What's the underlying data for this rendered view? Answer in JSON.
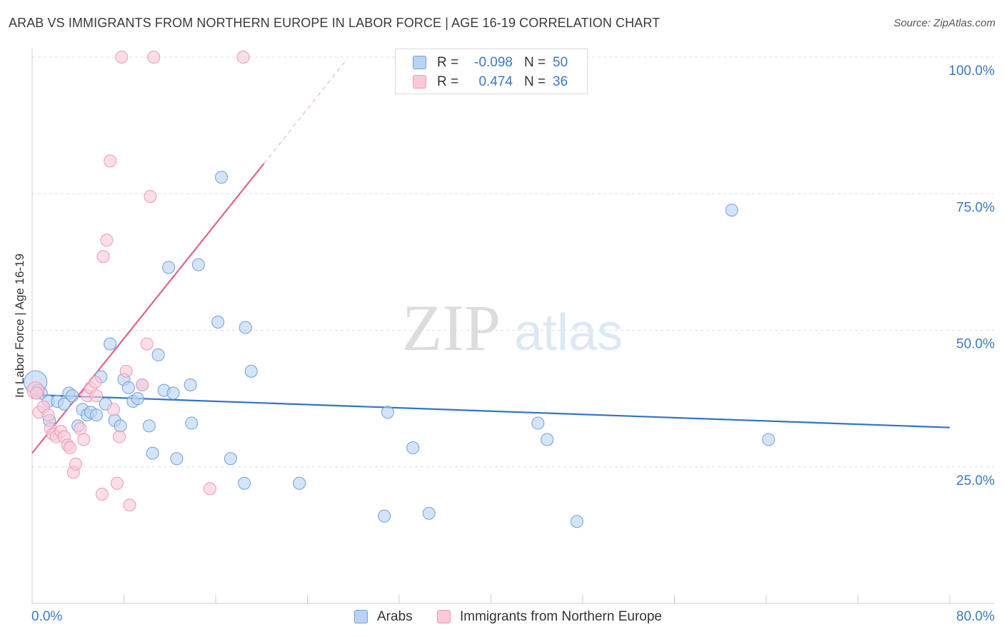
{
  "header": {
    "title": "ARAB VS IMMIGRANTS FROM NORTHERN EUROPE IN LABOR FORCE | AGE 16-19 CORRELATION CHART",
    "source": "Source: ZipAtlas.com"
  },
  "watermark": {
    "zip": "ZIP",
    "atlas": "atlas"
  },
  "stats_legend": {
    "rows": [
      {
        "r_label": "R =",
        "r_value": "-0.098",
        "n_label": "N =",
        "n_value": "50",
        "color": "#b9d3f3"
      },
      {
        "r_label": "R =",
        "r_value": "0.474",
        "n_label": "N =",
        "n_value": "36",
        "color": "#f9c9d9"
      }
    ]
  },
  "chart_data": {
    "type": "scatter",
    "title": "ARAB VS IMMIGRANTS FROM NORTHERN EUROPE IN LABOR FORCE | AGE 16-19 CORRELATION CHART",
    "xlabel": "",
    "ylabel": "In Labor Force | Age 16-19",
    "xlim": [
      0,
      80
    ],
    "ylim": [
      0,
      105
    ],
    "x_tick_labels": [
      "0.0%",
      "80.0%"
    ],
    "y_ticks": [
      25,
      50,
      75,
      100
    ],
    "y_tick_labels": [
      "25.0%",
      "50.0%",
      "75.0%",
      "100.0%"
    ],
    "grid": true,
    "legend_position": "bottom",
    "series": [
      {
        "name": "Arabs",
        "color": "#6f9fdc",
        "fill": "#b9d3f3",
        "trend": {
          "x": [
            0,
            80
          ],
          "y": [
            38.2,
            32.2
          ]
        },
        "points": [
          [
            0.3,
            40.5
          ],
          [
            0.8,
            38.5
          ],
          [
            1.4,
            37
          ],
          [
            1.5,
            33.5
          ],
          [
            2.2,
            37
          ],
          [
            2.8,
            36.5
          ],
          [
            3.2,
            38.5
          ],
          [
            3.5,
            38
          ],
          [
            4.0,
            32.5
          ],
          [
            4.4,
            35.5
          ],
          [
            4.8,
            34.5
          ],
          [
            5.1,
            35
          ],
          [
            5.6,
            34.5
          ],
          [
            6.0,
            41.5
          ],
          [
            6.4,
            36.5
          ],
          [
            6.8,
            47.5
          ],
          [
            7.2,
            33.5
          ],
          [
            7.7,
            32.5
          ],
          [
            8.0,
            41
          ],
          [
            8.4,
            39.5
          ],
          [
            8.8,
            37
          ],
          [
            9.2,
            37.5
          ],
          [
            9.6,
            40
          ],
          [
            10.2,
            32.5
          ],
          [
            10.5,
            27.5
          ],
          [
            11.0,
            45.5
          ],
          [
            11.5,
            39
          ],
          [
            11.9,
            61.5
          ],
          [
            12.3,
            38.5
          ],
          [
            12.6,
            26.5
          ],
          [
            13.8,
            40
          ],
          [
            13.9,
            33
          ],
          [
            14.5,
            62
          ],
          [
            16.2,
            51.5
          ],
          [
            16.5,
            78
          ],
          [
            17.3,
            26.5
          ],
          [
            18.5,
            22
          ],
          [
            18.6,
            50.5
          ],
          [
            19.1,
            42.5
          ],
          [
            23.3,
            22
          ],
          [
            30.7,
            16
          ],
          [
            31.0,
            35
          ],
          [
            33.2,
            28.5
          ],
          [
            34.6,
            16.5
          ],
          [
            44.1,
            33
          ],
          [
            44.9,
            30
          ],
          [
            47.5,
            15
          ],
          [
            61.0,
            72
          ],
          [
            64.2,
            30
          ],
          [
            0.5,
            39
          ]
        ]
      },
      {
        "name": "Immigrants from Northern Europe",
        "color": "#ee97b4",
        "fill": "#f9c9d9",
        "trend": {
          "x": [
            0,
            20.2
          ],
          "y": [
            27.5,
            80.5
          ]
        },
        "trend_dashed": {
          "x": [
            20.2,
            27.4
          ],
          "y": [
            80.5,
            99.5
          ]
        },
        "points": [
          [
            0.3,
            39
          ],
          [
            0.6,
            35
          ],
          [
            1.0,
            36
          ],
          [
            1.4,
            34.5
          ],
          [
            1.6,
            32
          ],
          [
            1.8,
            31
          ],
          [
            2.1,
            30.5
          ],
          [
            2.5,
            31.5
          ],
          [
            2.8,
            30.5
          ],
          [
            3.1,
            29
          ],
          [
            3.3,
            28.5
          ],
          [
            3.6,
            24
          ],
          [
            3.8,
            25.5
          ],
          [
            4.2,
            32
          ],
          [
            4.5,
            30
          ],
          [
            4.8,
            38
          ],
          [
            5.1,
            39.5
          ],
          [
            5.5,
            40.5
          ],
          [
            5.6,
            38
          ],
          [
            6.1,
            20
          ],
          [
            6.2,
            63.5
          ],
          [
            6.5,
            66.5
          ],
          [
            6.8,
            81
          ],
          [
            7.1,
            35.5
          ],
          [
            7.4,
            22
          ],
          [
            7.6,
            30.5
          ],
          [
            7.8,
            100
          ],
          [
            8.2,
            42.5
          ],
          [
            8.5,
            18
          ],
          [
            9.6,
            40
          ],
          [
            10.0,
            47.5
          ],
          [
            10.3,
            74.5
          ],
          [
            10.6,
            100
          ],
          [
            15.5,
            21
          ],
          [
            18.4,
            100
          ],
          [
            0.4,
            38.5
          ]
        ]
      }
    ]
  },
  "bottom_legend": [
    {
      "label": "Arabs",
      "color": "#b9d3f3"
    },
    {
      "label": "Immigrants from Northern Europe",
      "color": "#f9c9d9"
    }
  ]
}
